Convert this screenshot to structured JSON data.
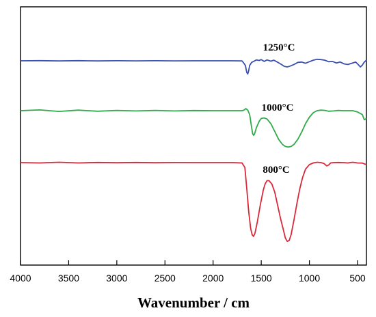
{
  "chart_data": {
    "type": "line",
    "title": "",
    "xlabel": "Wavenumber / cm",
    "ylabel": "",
    "xlim": [
      4000,
      400
    ],
    "x_reversed": true,
    "x_ticks": [
      4000,
      3500,
      3000,
      2500,
      2000,
      1500,
      1000,
      500
    ],
    "y_ticks_shown": false,
    "grid": false,
    "legend": "none",
    "series": [
      {
        "name": "1250°C",
        "color": "#3a4fb0",
        "points": [
          [
            4000,
            0
          ],
          [
            3800,
            0.005
          ],
          [
            3600,
            -0.005
          ],
          [
            3400,
            0.004
          ],
          [
            3200,
            -0.004
          ],
          [
            3000,
            0.002
          ],
          [
            2800,
            -0.003
          ],
          [
            2600,
            0.002
          ],
          [
            2400,
            -0.002
          ],
          [
            2200,
            0.001
          ],
          [
            2000,
            0
          ],
          [
            1800,
            0
          ],
          [
            1700,
            -0.005
          ],
          [
            1680,
            -0.08
          ],
          [
            1665,
            -0.15
          ],
          [
            1650,
            -0.38
          ],
          [
            1640,
            -0.43
          ],
          [
            1630,
            -0.32
          ],
          [
            1620,
            -0.15
          ],
          [
            1600,
            -0.05
          ],
          [
            1580,
            -0.02
          ],
          [
            1550,
            0.03
          ],
          [
            1520,
            0.01
          ],
          [
            1500,
            0.04
          ],
          [
            1470,
            -0.02
          ],
          [
            1440,
            0.03
          ],
          [
            1400,
            -0.01
          ],
          [
            1370,
            0.02
          ],
          [
            1340,
            -0.03
          ],
          [
            1300,
            -0.1
          ],
          [
            1260,
            -0.18
          ],
          [
            1230,
            -0.2
          ],
          [
            1200,
            -0.17
          ],
          [
            1160,
            -0.12
          ],
          [
            1120,
            -0.05
          ],
          [
            1080,
            -0.04
          ],
          [
            1040,
            -0.08
          ],
          [
            1000,
            -0.03
          ],
          [
            960,
            0.02
          ],
          [
            920,
            0.05
          ],
          [
            880,
            0.04
          ],
          [
            840,
            0.02
          ],
          [
            800,
            -0.03
          ],
          [
            760,
            -0.02
          ],
          [
            720,
            -0.07
          ],
          [
            680,
            -0.04
          ],
          [
            640,
            -0.1
          ],
          [
            600,
            -0.12
          ],
          [
            560,
            -0.08
          ],
          [
            520,
            -0.04
          ],
          [
            500,
            -0.1
          ],
          [
            470,
            -0.2
          ],
          [
            450,
            -0.14
          ],
          [
            430,
            -0.04
          ],
          [
            400,
            0.02
          ]
        ]
      },
      {
        "name": "1000°C",
        "color": "#2faa4a",
        "points": [
          [
            4000,
            0
          ],
          [
            3800,
            0.03
          ],
          [
            3600,
            -0.03
          ],
          [
            3400,
            0.02
          ],
          [
            3200,
            -0.02
          ],
          [
            3000,
            0.01
          ],
          [
            2800,
            -0.01
          ],
          [
            2600,
            0.01
          ],
          [
            2400,
            -0.01
          ],
          [
            2200,
            0.005
          ],
          [
            2000,
            0
          ],
          [
            1800,
            0
          ],
          [
            1700,
            0
          ],
          [
            1680,
            0.02
          ],
          [
            1660,
            0.08
          ],
          [
            1640,
            0.02
          ],
          [
            1620,
            -0.15
          ],
          [
            1600,
            -0.65
          ],
          [
            1590,
            -0.88
          ],
          [
            1580,
            -0.95
          ],
          [
            1570,
            -0.9
          ],
          [
            1550,
            -0.65
          ],
          [
            1520,
            -0.4
          ],
          [
            1500,
            -0.3
          ],
          [
            1470,
            -0.28
          ],
          [
            1440,
            -0.32
          ],
          [
            1400,
            -0.5
          ],
          [
            1360,
            -0.8
          ],
          [
            1320,
            -1.1
          ],
          [
            1280,
            -1.3
          ],
          [
            1250,
            -1.38
          ],
          [
            1220,
            -1.4
          ],
          [
            1190,
            -1.38
          ],
          [
            1160,
            -1.3
          ],
          [
            1120,
            -1.1
          ],
          [
            1080,
            -0.82
          ],
          [
            1040,
            -0.5
          ],
          [
            1000,
            -0.25
          ],
          [
            960,
            -0.08
          ],
          [
            920,
            0
          ],
          [
            880,
            0.02
          ],
          [
            840,
            0.01
          ],
          [
            800,
            -0.02
          ],
          [
            750,
            -0.01
          ],
          [
            700,
            0.01
          ],
          [
            650,
            0
          ],
          [
            600,
            0
          ],
          [
            550,
            0
          ],
          [
            500,
            -0.05
          ],
          [
            450,
            -0.15
          ],
          [
            430,
            -0.35
          ],
          [
            400,
            -0.3
          ]
        ]
      },
      {
        "name": "800°C",
        "color": "#d9283a",
        "points": [
          [
            4000,
            0
          ],
          [
            3800,
            -0.02
          ],
          [
            3600,
            0.02
          ],
          [
            3400,
            -0.02
          ],
          [
            3200,
            0.01
          ],
          [
            3000,
            -0.01
          ],
          [
            2800,
            0.01
          ],
          [
            2600,
            -0.01
          ],
          [
            2400,
            0.005
          ],
          [
            2200,
            0
          ],
          [
            2000,
            0
          ],
          [
            1800,
            0
          ],
          [
            1700,
            -0.02
          ],
          [
            1670,
            -0.3
          ],
          [
            1650,
            -1.6
          ],
          [
            1630,
            -3.0
          ],
          [
            1610,
            -4.0
          ],
          [
            1595,
            -4.4
          ],
          [
            1580,
            -4.5
          ],
          [
            1565,
            -4.3
          ],
          [
            1540,
            -3.6
          ],
          [
            1510,
            -2.6
          ],
          [
            1480,
            -1.7
          ],
          [
            1460,
            -1.3
          ],
          [
            1440,
            -1.1
          ],
          [
            1420,
            -1.1
          ],
          [
            1390,
            -1.3
          ],
          [
            1360,
            -1.8
          ],
          [
            1330,
            -2.6
          ],
          [
            1300,
            -3.4
          ],
          [
            1270,
            -4.1
          ],
          [
            1250,
            -4.6
          ],
          [
            1230,
            -4.8
          ],
          [
            1210,
            -4.75
          ],
          [
            1190,
            -4.4
          ],
          [
            1160,
            -3.5
          ],
          [
            1130,
            -2.5
          ],
          [
            1100,
            -1.6
          ],
          [
            1070,
            -0.9
          ],
          [
            1040,
            -0.4
          ],
          [
            1000,
            -0.12
          ],
          [
            960,
            -0.02
          ],
          [
            920,
            0.02
          ],
          [
            880,
            0
          ],
          [
            850,
            -0.05
          ],
          [
            820,
            -0.2
          ],
          [
            800,
            -0.15
          ],
          [
            780,
            -0.02
          ],
          [
            750,
            0
          ],
          [
            700,
            0.01
          ],
          [
            650,
            0
          ],
          [
            600,
            -0.02
          ],
          [
            550,
            0.02
          ],
          [
            500,
            -0.02
          ],
          [
            450,
            -0.03
          ],
          [
            420,
            -0.1
          ],
          [
            400,
            -0.08
          ]
        ]
      }
    ]
  }
}
